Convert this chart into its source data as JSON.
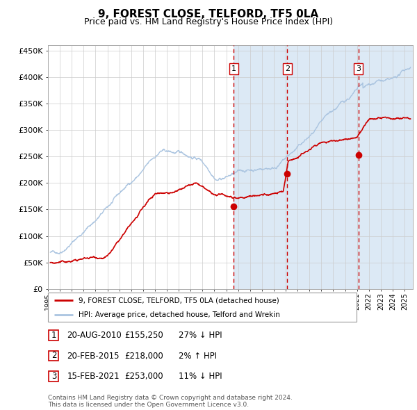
{
  "title": "9, FOREST CLOSE, TELFORD, TF5 0LA",
  "subtitle": "Price paid vs. HM Land Registry's House Price Index (HPI)",
  "title_fontsize": 11,
  "subtitle_fontsize": 9,
  "ylim": [
    0,
    460000
  ],
  "yticks": [
    0,
    50000,
    100000,
    150000,
    200000,
    250000,
    300000,
    350000,
    400000,
    450000
  ],
  "ytick_labels": [
    "£0",
    "£50K",
    "£100K",
    "£150K",
    "£200K",
    "£250K",
    "£300K",
    "£350K",
    "£400K",
    "£450K"
  ],
  "xlim_start": 1995.2,
  "xlim_end": 2025.7,
  "background_color": "#ffffff",
  "plot_bg_color": "#ffffff",
  "grid_color": "#cccccc",
  "hpi_line_color": "#aac4e0",
  "price_line_color": "#cc0000",
  "shade_color": "#dce9f5",
  "dashed_line_color": "#cc0000",
  "marker_color": "#cc0000",
  "transaction_dates": [
    2010.636,
    2015.136,
    2021.12
  ],
  "transaction_prices": [
    155250,
    218000,
    253000
  ],
  "transaction_labels": [
    "1",
    "2",
    "3"
  ],
  "shade_x_start": 2010.636,
  "shade_x_end": 2025.7,
  "legend_entries": [
    "9, FOREST CLOSE, TELFORD, TF5 0LA (detached house)",
    "HPI: Average price, detached house, Telford and Wrekin"
  ],
  "table_rows": [
    [
      "1",
      "20-AUG-2010",
      "£155,250",
      "27% ↓ HPI"
    ],
    [
      "2",
      "20-FEB-2015",
      "£218,000",
      "2% ↑ HPI"
    ],
    [
      "3",
      "15-FEB-2021",
      "£253,000",
      "11% ↓ HPI"
    ]
  ],
  "footer_text": "Contains HM Land Registry data © Crown copyright and database right 2024.\nThis data is licensed under the Open Government Licence v3.0.",
  "xtick_years": [
    1995,
    1996,
    1997,
    1998,
    1999,
    2000,
    2001,
    2002,
    2003,
    2004,
    2005,
    2006,
    2007,
    2008,
    2009,
    2010,
    2011,
    2012,
    2013,
    2014,
    2015,
    2016,
    2017,
    2018,
    2019,
    2020,
    2021,
    2022,
    2023,
    2024,
    2025
  ]
}
